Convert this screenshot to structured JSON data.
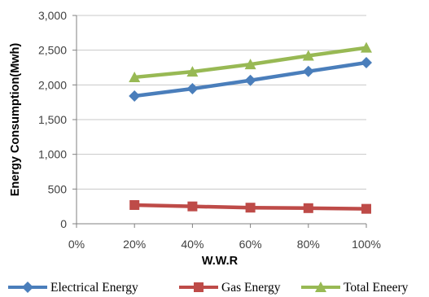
{
  "chart_data": {
    "type": "line",
    "title": "",
    "xlabel": "W.W.R",
    "ylabel": "Energy Consumption(Mwh)",
    "categories": [
      "0%",
      "20%",
      "40%",
      "60%",
      "80%",
      "100%"
    ],
    "x": [
      20,
      40,
      60,
      80,
      100
    ],
    "xlim": [
      0,
      100
    ],
    "ylim": [
      0,
      3000
    ],
    "yticks": [
      0,
      500,
      1000,
      1500,
      2000,
      2500,
      3000
    ],
    "ytick_labels": [
      "0",
      "500",
      "1,000",
      "1,500",
      "2,000",
      "2,500",
      "3,000"
    ],
    "grid": "horizontal",
    "legend_position": "bottom",
    "series": [
      {
        "name": "Electrical Energy",
        "values": [
          1840,
          1945,
          2065,
          2195,
          2320
        ],
        "color": "#4A7EBB",
        "marker": "diamond"
      },
      {
        "name": "Gas Energy",
        "values": [
          270,
          250,
          232,
          225,
          215
        ],
        "color": "#BE4B48",
        "marker": "square"
      },
      {
        "name": "Total Eneery",
        "values": [
          2110,
          2190,
          2295,
          2420,
          2535
        ],
        "color": "#98B954",
        "marker": "triangle"
      }
    ]
  }
}
